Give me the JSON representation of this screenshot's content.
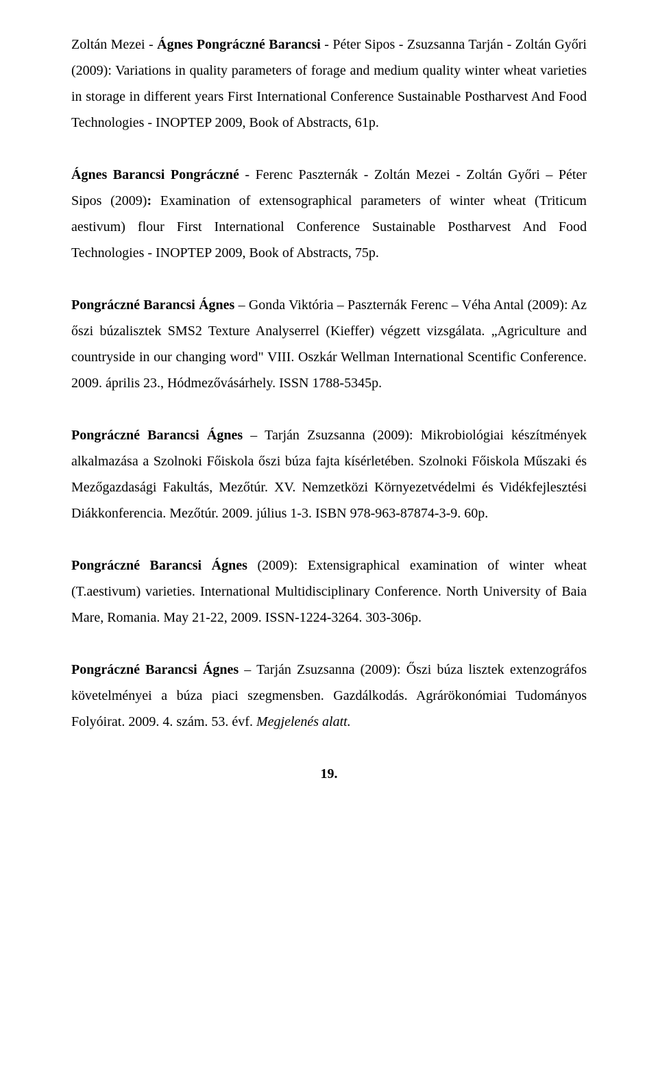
{
  "entries": [
    {
      "parts": [
        {
          "text": "Zoltán Mezei - ",
          "bold": false
        },
        {
          "text": "Ágnes Pongráczné Barancsi",
          "bold": true
        },
        {
          "text": " - Péter Sipos - Zsuzsanna Tarján - Zoltán Győri (2009): Variations in quality parameters of forage and medium quality winter wheat varieties in storage in different years First International Conference Sustainable Postharvest And Food Technologies - INOPTEP 2009, Book of Abstracts, 61p.",
          "bold": false
        }
      ]
    },
    {
      "parts": [
        {
          "text": "Ágnes Barancsi Pongráczné",
          "bold": true
        },
        {
          "text": " - Ferenc Paszternák - Zoltán Mezei - Zoltán Győri – Péter Sipos (2009)",
          "bold": false
        },
        {
          "text": ": ",
          "bold": true
        },
        {
          "text": "Examination of extensographical parameters of winter wheat (Triticum aestivum) flour First International Conference Sustainable Postharvest And Food Technologies - INOPTEP 2009, Book of Abstracts, 75p.",
          "bold": false
        }
      ]
    },
    {
      "parts": [
        {
          "text": "Pongráczné Barancsi Ágnes",
          "bold": true
        },
        {
          "text": " – Gonda Viktória – Paszternák Ferenc – Véha Antal (2009): Az őszi búzalisztek SMS2 Texture Analyserrel (Kieffer) végzett vizsgálata. „Agriculture and countryside in our changing word\" VIII. Oszkár Wellman International Scentific Conference. 2009. április 23., Hódmezővásárhely. ISSN 1788-5345p.",
          "bold": false
        }
      ]
    },
    {
      "parts": [
        {
          "text": "Pongráczné Barancsi Ágnes",
          "bold": true
        },
        {
          "text": " – Tarján Zsuzsanna (2009): Mikrobiológiai készítmények alkalmazása a Szolnoki Főiskola őszi búza fajta kísérletében. Szolnoki Főiskola Műszaki és Mezőgazdasági Fakultás, Mezőtúr. XV. Nemzetközi Környezetvédelmi és Vidékfejlesztési Diákkonferencia. Mezőtúr. 2009. július 1-3. ISBN 978-963-87874-3-9. 60p.",
          "bold": false
        }
      ]
    },
    {
      "parts": [
        {
          "text": "Pongráczné Barancsi Ágnes",
          "bold": true
        },
        {
          "text": " (2009): Extensigraphical examination of winter wheat (T.aestivum) varieties. International Multidisciplinary Conference. North University of Baia Mare, Romania. May 21-22, 2009. ISSN-1224-3264. 303-306p.",
          "bold": false
        }
      ]
    },
    {
      "parts": [
        {
          "text": "Pongráczné Barancsi Ágnes",
          "bold": true
        },
        {
          "text": " – Tarján Zsuzsanna (2009): Őszi búza lisztek extenzográfos követelményei a búza piaci szegmensben. Gazdálkodás. Agrárökonómiai Tudományos Folyóirat. 2009. 4. szám. 53. évf. ",
          "bold": false
        },
        {
          "text": "Megjelenés alatt.",
          "bold": false,
          "italic": true
        }
      ]
    }
  ],
  "page_number": "19."
}
